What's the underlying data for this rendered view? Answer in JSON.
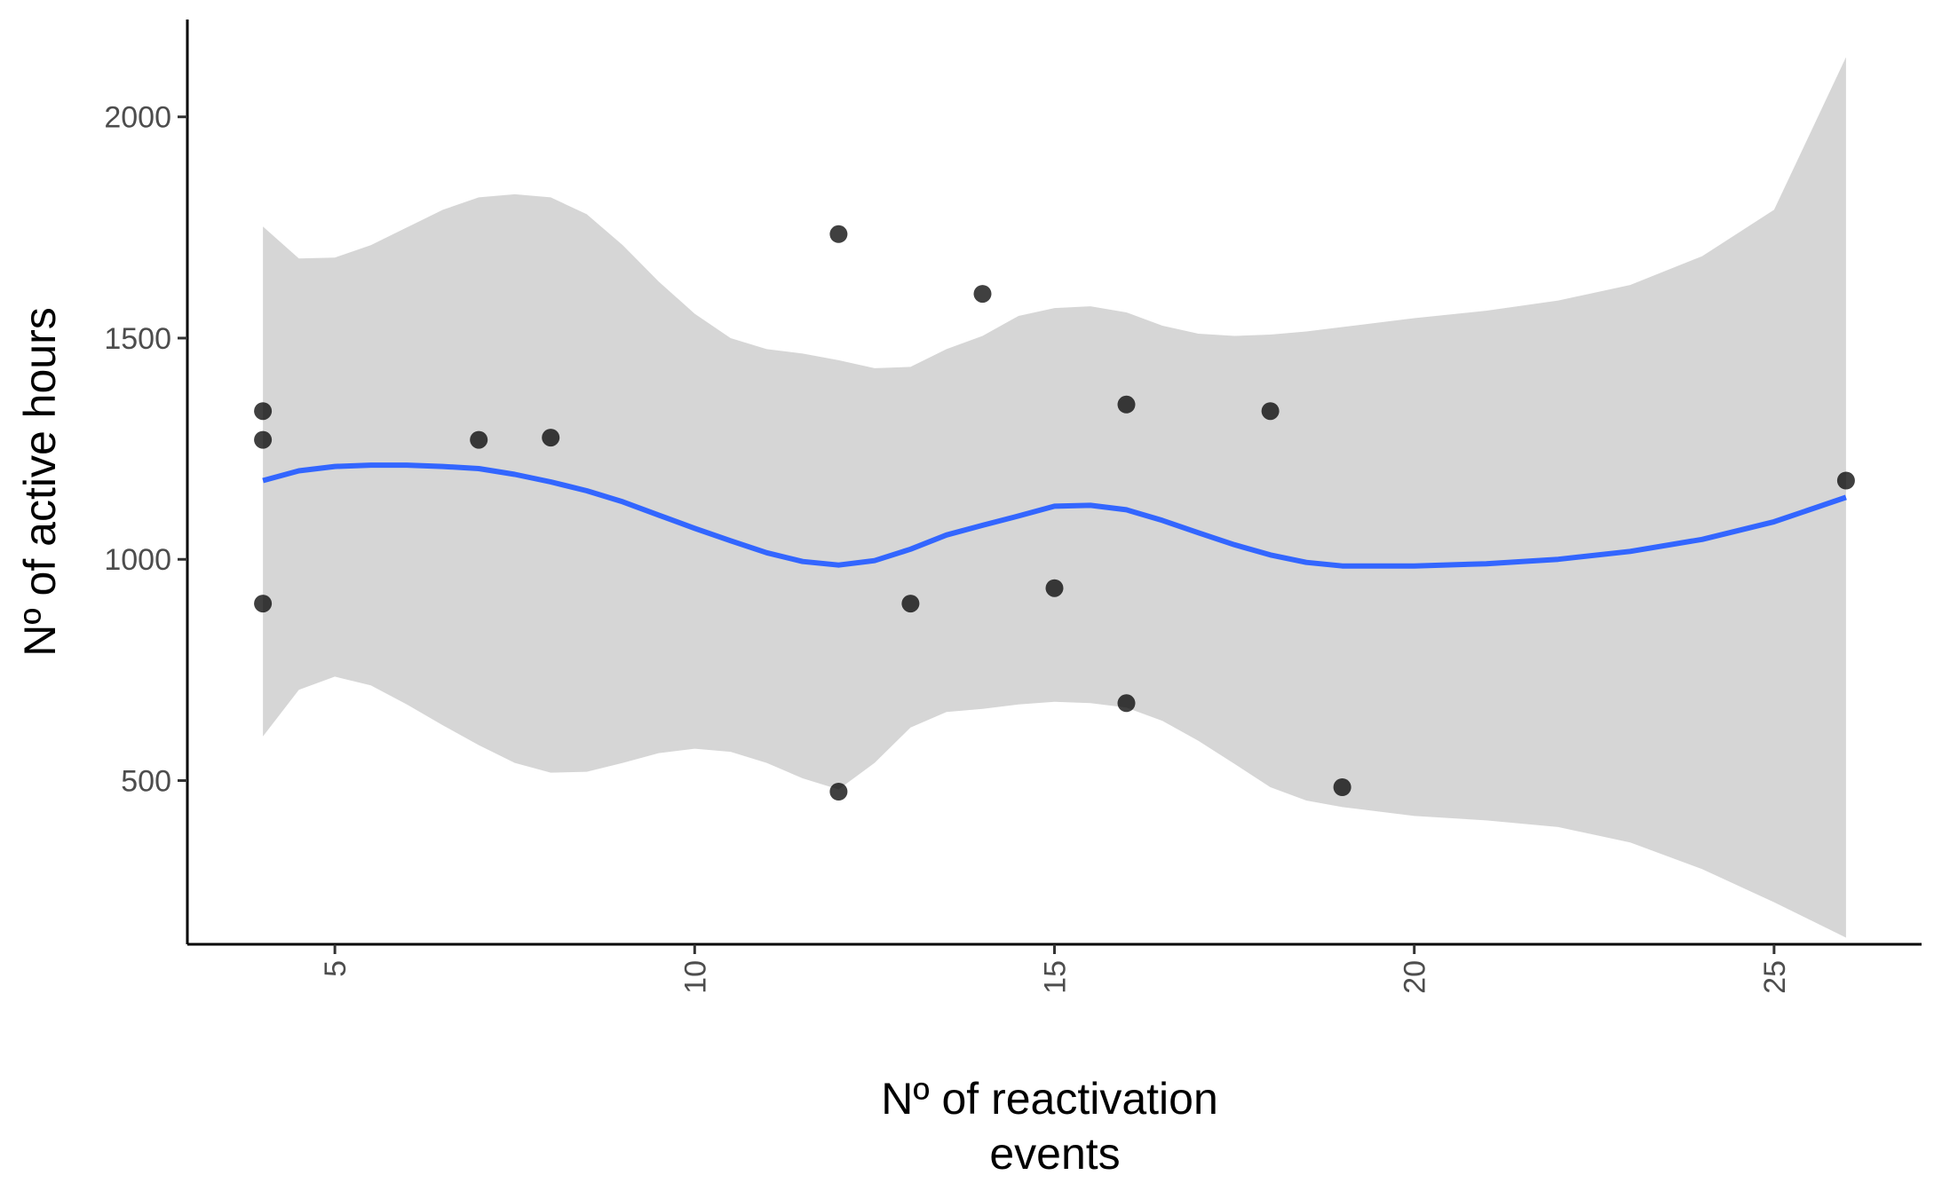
{
  "chart_data": {
    "type": "scatter",
    "title": "",
    "xlabel_lines": [
      "Nº of reactivation",
      "events"
    ],
    "ylabel": "Nº of active hours",
    "xlim": [
      2.95,
      27.05
    ],
    "ylim": [
      130,
      2220
    ],
    "x_ticks": [
      5,
      10,
      15,
      20,
      25
    ],
    "y_ticks": [
      500,
      1000,
      1500,
      2000
    ],
    "x_tick_rotation": "vertical",
    "grid": false,
    "points": [
      {
        "x": 4,
        "y": 1335
      },
      {
        "x": 4,
        "y": 1270
      },
      {
        "x": 4,
        "y": 900
      },
      {
        "x": 7,
        "y": 1270
      },
      {
        "x": 8,
        "y": 1275
      },
      {
        "x": 12,
        "y": 1735
      },
      {
        "x": 12,
        "y": 475
      },
      {
        "x": 13,
        "y": 900
      },
      {
        "x": 14,
        "y": 1600
      },
      {
        "x": 15,
        "y": 935
      },
      {
        "x": 16,
        "y": 1350
      },
      {
        "x": 16,
        "y": 675
      },
      {
        "x": 18,
        "y": 1335
      },
      {
        "x": 19,
        "y": 485
      },
      {
        "x": 26,
        "y": 1178
      }
    ],
    "smooth": {
      "method": "loess",
      "x": [
        4,
        4.5,
        5,
        5.5,
        6,
        6.5,
        7,
        7.5,
        8,
        8.5,
        9,
        9.5,
        10,
        10.5,
        11,
        11.5,
        12,
        12.5,
        13,
        13.5,
        14,
        14.5,
        15,
        15.5,
        16,
        16.5,
        17,
        17.5,
        18,
        18.5,
        19,
        20,
        21,
        22,
        23,
        24,
        25,
        26
      ],
      "y": [
        1178,
        1200,
        1210,
        1213,
        1213,
        1210,
        1205,
        1192,
        1175,
        1155,
        1130,
        1100,
        1070,
        1042,
        1015,
        995,
        987,
        997,
        1023,
        1055,
        1077,
        1098,
        1120,
        1122,
        1112,
        1088,
        1060,
        1033,
        1010,
        993,
        985,
        985,
        990,
        1000,
        1018,
        1045,
        1085,
        1140
      ],
      "lower": [
        600,
        705,
        735,
        715,
        672,
        625,
        580,
        540,
        518,
        520,
        540,
        562,
        572,
        565,
        540,
        505,
        480,
        540,
        620,
        655,
        662,
        672,
        678,
        675,
        665,
        635,
        590,
        538,
        485,
        455,
        440,
        420,
        410,
        395,
        360,
        300,
        225,
        145
      ],
      "upper": [
        1752,
        1680,
        1682,
        1710,
        1750,
        1790,
        1818,
        1825,
        1818,
        1780,
        1710,
        1628,
        1555,
        1500,
        1475,
        1465,
        1450,
        1432,
        1435,
        1475,
        1505,
        1550,
        1568,
        1572,
        1558,
        1528,
        1510,
        1505,
        1508,
        1515,
        1525,
        1545,
        1562,
        1585,
        1620,
        1685,
        1790,
        2135
      ],
      "line_color": "#3366ff",
      "band_color": "#d6d6d6"
    },
    "point_color": "#000000",
    "point_opacity": 0.75
  }
}
